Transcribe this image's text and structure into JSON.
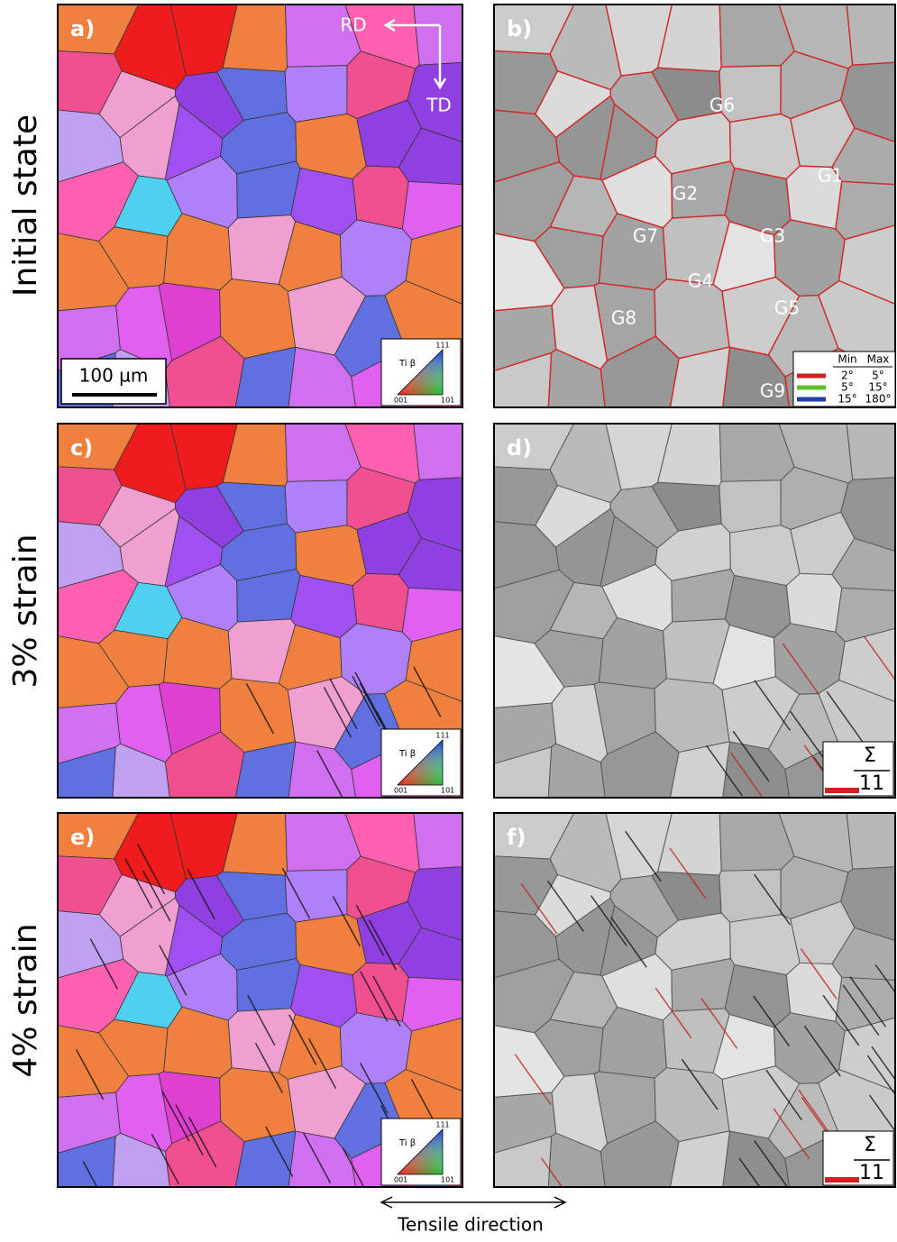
{
  "row_labels": [
    "Initial state",
    "3% strain",
    "4% strain"
  ],
  "panels": [
    {
      "label": "a)"
    },
    {
      "label": "b)"
    },
    {
      "label": "c)"
    },
    {
      "label": "d)"
    },
    {
      "label": "e)"
    },
    {
      "label": "f)"
    }
  ],
  "directions": {
    "rd": "RD",
    "td": "TD"
  },
  "scale_bar": "100 µm",
  "ipf_key": {
    "phase": "Ti β",
    "corners": [
      "111",
      "001",
      "101"
    ]
  },
  "grain_labels": [
    "G6",
    "G2",
    "G1",
    "G7",
    "G3",
    "G4",
    "G5",
    "G8",
    "G9"
  ],
  "misorientation_legend": {
    "headers": [
      "Min",
      "Max"
    ],
    "rows": [
      [
        "2°",
        "5°"
      ],
      [
        "5°",
        "15°"
      ],
      [
        "15°",
        "180°"
      ]
    ]
  },
  "sigma_legend": {
    "symbol": "Σ",
    "value": "11"
  },
  "tensile_direction": "Tensile direction"
}
